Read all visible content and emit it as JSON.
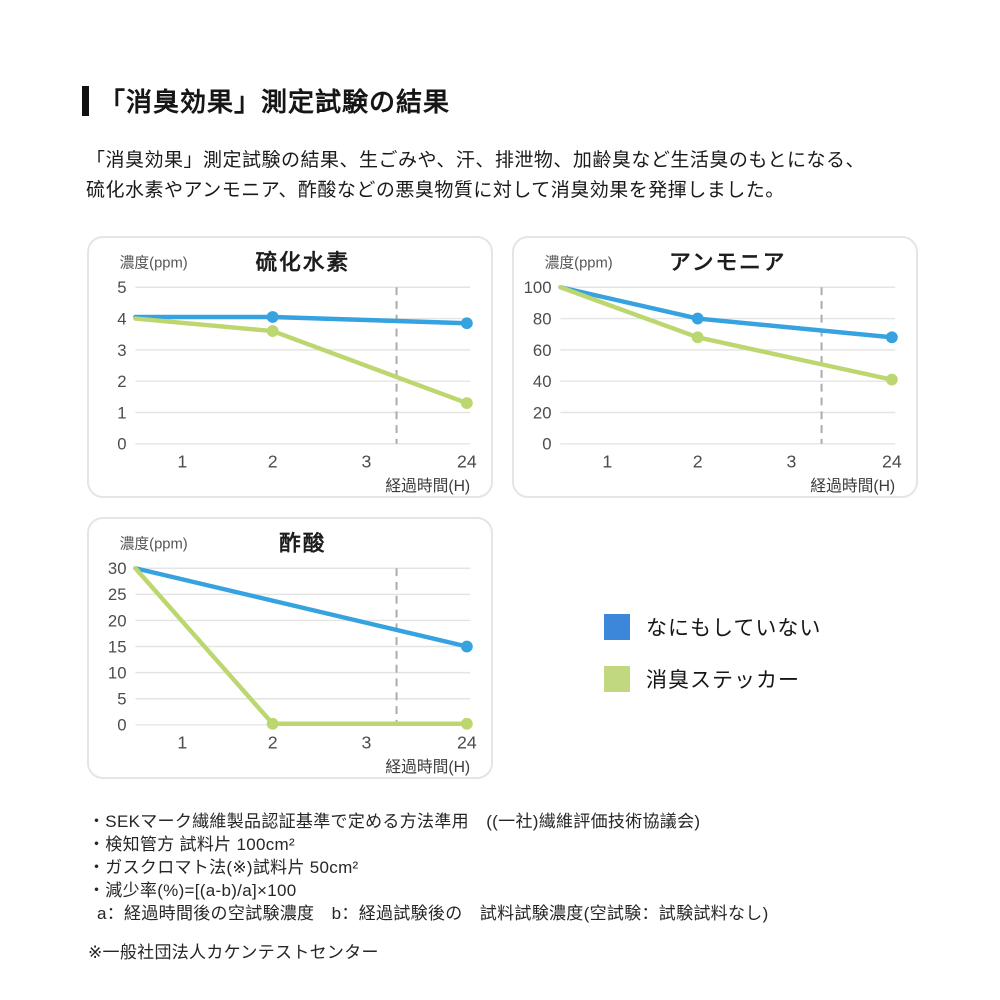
{
  "header": {
    "title": "「消臭効果」測定試験の結果"
  },
  "intro": {
    "line1": "「消臭効果」測定試験の結果、生ごみや、汗、排泄物、加齢臭など生活臭のもとになる、",
    "line2": "硫化水素やアンモニア、酢酸などの悪臭物質に対して消臭効果を発揮しました。"
  },
  "legend": {
    "items": [
      {
        "label": "なにもしていない",
        "color": "#3d87db"
      },
      {
        "label": "消臭ステッカー",
        "color": "#c2d87f"
      }
    ]
  },
  "chart_data": [
    {
      "type": "line",
      "title": "硫化水素",
      "ylabel": "濃度(ppm)",
      "xlabel": "経過時間(H)",
      "ylim": [
        0,
        5
      ],
      "yticks": [
        0,
        1,
        2,
        3,
        4,
        5
      ],
      "xticks": [
        {
          "label": "1",
          "pos": 0.14
        },
        {
          "label": "2",
          "pos": 0.41
        },
        {
          "label": "3",
          "pos": 0.69
        },
        {
          "label": "24",
          "pos": 0.99
        }
      ],
      "dashed_line_pos": 0.78,
      "grid": true,
      "series": [
        {
          "name": "なにもしていない",
          "color": "#36a2df",
          "points": [
            {
              "pos": 0,
              "value": 4.05
            },
            {
              "pos": 0.41,
              "value": 4.05,
              "dot": true
            },
            {
              "pos": 0.99,
              "value": 3.85,
              "dot": true
            }
          ]
        },
        {
          "name": "消臭ステッカー",
          "color": "#bcd76f",
          "points": [
            {
              "pos": 0,
              "value": 4.0
            },
            {
              "pos": 0.41,
              "value": 3.6,
              "dot": true
            },
            {
              "pos": 0.99,
              "value": 1.3,
              "dot": true
            }
          ]
        }
      ]
    },
    {
      "type": "line",
      "title": "アンモニア",
      "ylabel": "濃度(ppm)",
      "xlabel": "経過時間(H)",
      "ylim": [
        0,
        100
      ],
      "yticks": [
        0,
        20,
        40,
        60,
        80,
        100
      ],
      "xticks": [
        {
          "label": "1",
          "pos": 0.14
        },
        {
          "label": "2",
          "pos": 0.41
        },
        {
          "label": "3",
          "pos": 0.69
        },
        {
          "label": "24",
          "pos": 0.99
        }
      ],
      "dashed_line_pos": 0.78,
      "grid": true,
      "series": [
        {
          "name": "なにもしていない",
          "color": "#36a2df",
          "points": [
            {
              "pos": 0,
              "value": 100
            },
            {
              "pos": 0.41,
              "value": 80,
              "dot": true
            },
            {
              "pos": 0.99,
              "value": 68,
              "dot": true
            }
          ]
        },
        {
          "name": "消臭ステッカー",
          "color": "#bcd76f",
          "points": [
            {
              "pos": 0,
              "value": 100
            },
            {
              "pos": 0.41,
              "value": 68,
              "dot": true
            },
            {
              "pos": 0.99,
              "value": 41,
              "dot": true
            }
          ]
        }
      ]
    },
    {
      "type": "line",
      "title": "酢酸",
      "ylabel": "濃度(ppm)",
      "xlabel": "経過時間(H)",
      "ylim": [
        0,
        30
      ],
      "yticks": [
        0,
        5,
        10,
        15,
        20,
        25,
        30
      ],
      "xticks": [
        {
          "label": "1",
          "pos": 0.14
        },
        {
          "label": "2",
          "pos": 0.41
        },
        {
          "label": "3",
          "pos": 0.69
        },
        {
          "label": "24",
          "pos": 0.99
        }
      ],
      "dashed_line_pos": 0.78,
      "grid": true,
      "series": [
        {
          "name": "なにもしていない",
          "color": "#36a2df",
          "points": [
            {
              "pos": 0,
              "value": 30
            },
            {
              "pos": 0.99,
              "value": 15,
              "dot": true
            }
          ]
        },
        {
          "name": "消臭ステッカー",
          "color": "#bcd76f",
          "points": [
            {
              "pos": 0,
              "value": 30
            },
            {
              "pos": 0.41,
              "value": 0.2,
              "dot": true
            },
            {
              "pos": 0.99,
              "value": 0.2,
              "dot": true
            }
          ]
        }
      ]
    }
  ],
  "notes": {
    "lines": [
      "・SEKマーク繊維製品認証基準で定める方法準用　((一社)繊維評価技術協議会)",
      "・検知管方 試料片 100cm²",
      "・ガスクロマト法(※)試料片 50cm²",
      "・減少率(%)=[(a-b)/a]×100",
      "a：経過時間後の空試験濃度　b：経過試験後の　試料試験濃度(空試験：試験試料なし)"
    ]
  },
  "footer": {
    "note": "※一般社団法人カケンテストセンター"
  }
}
